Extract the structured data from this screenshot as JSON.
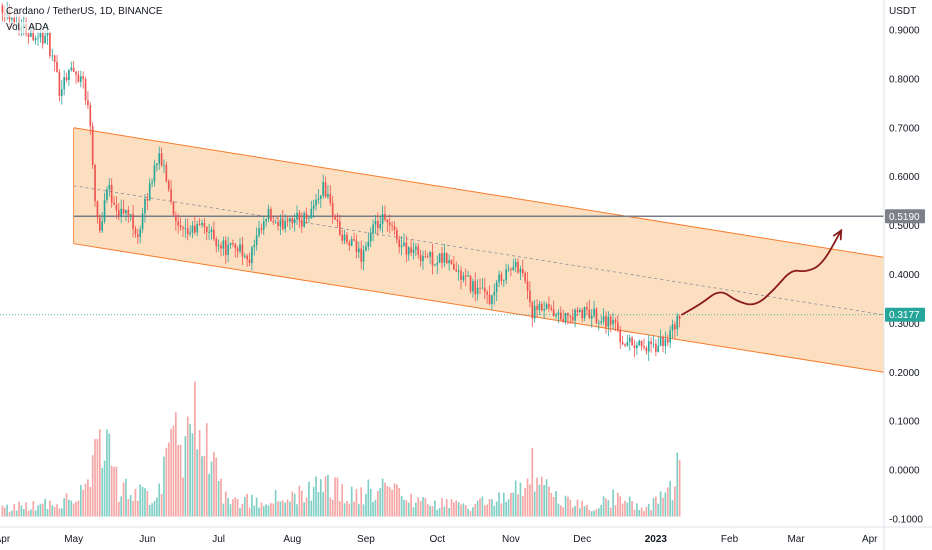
{
  "header": {
    "title": "Cardano / TetherUS, 1D, BINANCE",
    "volume_label": "Vol · ADA"
  },
  "chart_data": {
    "type": "candlestick",
    "title": "Cardano / TetherUS, 1D, BINANCE",
    "currency": "USDT",
    "y_ticks": [
      "0.9000",
      "0.8000",
      "0.7000",
      "0.6000",
      "0.5000",
      "0.4000",
      "0.3000",
      "0.2000",
      "0.1000",
      "0.0000",
      "-0.1000"
    ],
    "y_tick_values": [
      0.9,
      0.8,
      0.7,
      0.6,
      0.5,
      0.4,
      0.3,
      0.2,
      0.1,
      0.0,
      -0.1
    ],
    "x_ticks": [
      "Apr",
      "May",
      "Jun",
      "Jul",
      "Aug",
      "Sep",
      "Oct",
      "Nov",
      "Dec",
      "2023",
      "Feb",
      "Mar",
      "Apr"
    ],
    "x_tick_dates": [
      "2022-04-01",
      "2022-05-01",
      "2022-06-01",
      "2022-07-01",
      "2022-08-01",
      "2022-09-01",
      "2022-10-01",
      "2022-11-01",
      "2022-12-01",
      "2023-01-01",
      "2023-02-01",
      "2023-03-01",
      "2023-04-01"
    ],
    "ylim": [
      -0.11,
      0.965
    ],
    "xlim": [
      "2022-03-31",
      "2023-04-07"
    ],
    "grid": false,
    "colors": {
      "up": "#26a69a",
      "down": "#ef5350",
      "vol_up": "#7fcfc5",
      "vol_down": "#f5a6a5",
      "channel_fill": "#fcd9b6",
      "channel_line": "#f57c2c",
      "arrow": "#8b1a1a",
      "hline": "#787b86"
    },
    "horizontal_line": {
      "value": 0.519,
      "label": "0.5190"
    },
    "current_price": {
      "value": 0.3177,
      "label": "0.3177"
    },
    "channel": {
      "upper": [
        [
          "2022-05-01",
          0.7
        ],
        [
          "2023-04-07",
          0.435
        ]
      ],
      "lower": [
        [
          "2022-05-01",
          0.463
        ],
        [
          "2023-04-07",
          0.2
        ]
      ],
      "mid": [
        [
          "2022-05-01",
          0.5815
        ],
        [
          "2023-04-07",
          0.3175
        ]
      ]
    },
    "close_path": [
      [
        "2022-04-01",
        0.95
      ],
      [
        "2022-04-08",
        0.91
      ],
      [
        "2022-04-15",
        0.89
      ],
      [
        "2022-04-20",
        0.88
      ],
      [
        "2022-04-25",
        0.78
      ],
      [
        "2022-04-29",
        0.82
      ],
      [
        "2022-05-05",
        0.8
      ],
      [
        "2022-05-08",
        0.71
      ],
      [
        "2022-05-10",
        0.56
      ],
      [
        "2022-05-12",
        0.49
      ],
      [
        "2022-05-15",
        0.58
      ],
      [
        "2022-05-20",
        0.53
      ],
      [
        "2022-05-25",
        0.52
      ],
      [
        "2022-05-28",
        0.48
      ],
      [
        "2022-06-02",
        0.58
      ],
      [
        "2022-06-05",
        0.64
      ],
      [
        "2022-06-08",
        0.62
      ],
      [
        "2022-06-11",
        0.56
      ],
      [
        "2022-06-13",
        0.5
      ],
      [
        "2022-06-16",
        0.48
      ],
      [
        "2022-06-20",
        0.49
      ],
      [
        "2022-06-25",
        0.5
      ],
      [
        "2022-06-30",
        0.47
      ],
      [
        "2022-07-05",
        0.45
      ],
      [
        "2022-07-10",
        0.46
      ],
      [
        "2022-07-13",
        0.42
      ],
      [
        "2022-07-17",
        0.47
      ],
      [
        "2022-07-22",
        0.52
      ],
      [
        "2022-07-26",
        0.49
      ],
      [
        "2022-07-30",
        0.52
      ],
      [
        "2022-08-05",
        0.51
      ],
      [
        "2022-08-10",
        0.54
      ],
      [
        "2022-08-14",
        0.58
      ],
      [
        "2022-08-18",
        0.53
      ],
      [
        "2022-08-22",
        0.47
      ],
      [
        "2022-08-26",
        0.46
      ],
      [
        "2022-08-30",
        0.44
      ],
      [
        "2022-09-04",
        0.49
      ],
      [
        "2022-09-08",
        0.51
      ],
      [
        "2022-09-12",
        0.49
      ],
      [
        "2022-09-16",
        0.46
      ],
      [
        "2022-09-20",
        0.45
      ],
      [
        "2022-09-25",
        0.44
      ],
      [
        "2022-09-30",
        0.43
      ],
      [
        "2022-10-05",
        0.43
      ],
      [
        "2022-10-10",
        0.4
      ],
      [
        "2022-10-15",
        0.38
      ],
      [
        "2022-10-20",
        0.36
      ],
      [
        "2022-10-24",
        0.35
      ],
      [
        "2022-10-28",
        0.4
      ],
      [
        "2022-11-01",
        0.41
      ],
      [
        "2022-11-05",
        0.42
      ],
      [
        "2022-11-08",
        0.37
      ],
      [
        "2022-11-10",
        0.32
      ],
      [
        "2022-11-15",
        0.33
      ],
      [
        "2022-11-20",
        0.31
      ],
      [
        "2022-11-25",
        0.31
      ],
      [
        "2022-11-30",
        0.32
      ],
      [
        "2022-12-05",
        0.32
      ],
      [
        "2022-12-10",
        0.31
      ],
      [
        "2022-12-15",
        0.3
      ],
      [
        "2022-12-17",
        0.27
      ],
      [
        "2022-12-20",
        0.26
      ],
      [
        "2022-12-25",
        0.26
      ],
      [
        "2022-12-28",
        0.25
      ],
      [
        "2022-12-31",
        0.248
      ],
      [
        "2023-01-03",
        0.258
      ],
      [
        "2023-01-06",
        0.27
      ],
      [
        "2023-01-09",
        0.29
      ],
      [
        "2023-01-11",
        0.318
      ]
    ],
    "volume_path": [
      [
        "2022-04-01",
        0.012
      ],
      [
        "2022-04-25",
        0.02
      ],
      [
        "2022-05-08",
        0.05
      ],
      [
        "2022-05-10",
        0.095
      ],
      [
        "2022-05-12",
        0.135
      ],
      [
        "2022-05-20",
        0.04
      ],
      [
        "2022-06-05",
        0.03
      ],
      [
        "2022-06-13",
        0.12
      ],
      [
        "2022-06-16",
        0.06
      ],
      [
        "2022-06-20",
        0.135
      ],
      [
        "2022-07-05",
        0.02
      ],
      [
        "2022-07-22",
        0.025
      ],
      [
        "2022-08-05",
        0.03
      ],
      [
        "2022-08-14",
        0.045
      ],
      [
        "2022-08-26",
        0.03
      ],
      [
        "2022-09-08",
        0.04
      ],
      [
        "2022-09-25",
        0.02
      ],
      [
        "2022-10-15",
        0.015
      ],
      [
        "2022-10-28",
        0.03
      ],
      [
        "2022-11-08",
        0.04
      ],
      [
        "2022-11-10",
        0.065
      ],
      [
        "2022-11-20",
        0.025
      ],
      [
        "2022-12-05",
        0.012
      ],
      [
        "2022-12-17",
        0.03
      ],
      [
        "2022-12-28",
        0.01
      ],
      [
        "2023-01-09",
        0.045
      ],
      [
        "2023-01-11",
        0.08
      ]
    ],
    "projection_path": [
      [
        "2023-01-12",
        0.318
      ],
      [
        "2023-01-20",
        0.34
      ],
      [
        "2023-01-28",
        0.37
      ],
      [
        "2023-02-04",
        0.345
      ],
      [
        "2023-02-12",
        0.335
      ],
      [
        "2023-02-20",
        0.37
      ],
      [
        "2023-02-27",
        0.41
      ],
      [
        "2023-03-05",
        0.405
      ],
      [
        "2023-03-12",
        0.42
      ],
      [
        "2023-03-20",
        0.49
      ]
    ]
  }
}
